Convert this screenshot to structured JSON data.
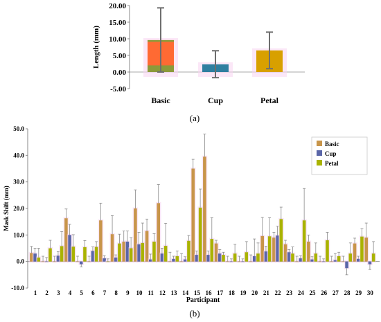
{
  "chart_data": [
    {
      "type": "bar",
      "panel_label": "(a)",
      "ylabel": "Length (mm)",
      "ylim": [
        -5,
        20
      ],
      "yticks": [
        "-5.00",
        "0.00",
        "5.00",
        "10.00",
        "15.00",
        "20.00"
      ],
      "categories": [
        "Basic",
        "Cup",
        "Petal"
      ],
      "values": [
        9.6,
        2.3,
        6.5
      ],
      "error_low": [
        0.0,
        -1.7,
        1.0
      ],
      "error_high": [
        19.3,
        6.4,
        12.0
      ],
      "colors": [
        "#ff6a33",
        "#2f7fa0",
        "#d8a000"
      ],
      "base_bands": [
        2.0,
        0,
        0
      ],
      "band_color": "#8c9a3a"
    },
    {
      "type": "bar",
      "panel_label": "(b)",
      "ylabel": "Mask Shift (mm)",
      "xlabel": "Participant",
      "ylim": [
        -10,
        50
      ],
      "yticks": [
        "-10.0",
        "0.0",
        "10.0",
        "20.0",
        "30.0",
        "40.0",
        "50.0"
      ],
      "categories": [
        "1",
        "2",
        "3",
        "4",
        "5",
        "6",
        "7",
        "8",
        "9",
        "10",
        "11",
        "12",
        "13",
        "14",
        "15",
        "16",
        "17",
        "18",
        "19",
        "20",
        "21",
        "22",
        "23",
        "24",
        "25",
        "26",
        "27",
        "28",
        "29",
        "30"
      ],
      "legend_position": "top-right",
      "series": [
        {
          "name": "Basic",
          "color": "#c8954a",
          "values": [
            3.2,
            0.0,
            0.0,
            16.3,
            0.0,
            0.0,
            15.5,
            10.3,
            7.5,
            20.0,
            11.5,
            22.0,
            0.0,
            0.0,
            35.0,
            39.5,
            6.8,
            0.0,
            0.0,
            0.0,
            9.6,
            9.0,
            6.5,
            0.0,
            7.5,
            0.0,
            0.0,
            0.0,
            6.8,
            9.0
          ],
          "errors": [
            2.5,
            2.0,
            2.0,
            3.5,
            2.0,
            2.0,
            6.5,
            7.0,
            4.0,
            7.0,
            4.5,
            7.0,
            3.5,
            3.0,
            3.5,
            8.5,
            1.2,
            2.0,
            2.0,
            2.5,
            7.0,
            2.0,
            1.5,
            2.0,
            2.5,
            2.0,
            2.0,
            2.0,
            2.0,
            5.5
          ]
        },
        {
          "name": "Cup",
          "color": "#5a66a8",
          "values": [
            3.0,
            0.0,
            2.2,
            10.0,
            -1.0,
            4.0,
            1.2,
            1.5,
            7.5,
            6.5,
            0.8,
            3.0,
            1.0,
            0.8,
            2.5,
            2.5,
            3.0,
            0.0,
            0.0,
            2.0,
            3.8,
            9.8,
            3.5,
            1.2,
            0.8,
            0.0,
            0.5,
            -2.5,
            1.0,
            -1.0
          ],
          "errors": [
            2.0,
            1.5,
            1.5,
            4.0,
            1.0,
            1.5,
            1.0,
            1.0,
            4.0,
            4.5,
            2.0,
            2.0,
            1.0,
            1.0,
            1.5,
            1.5,
            1.5,
            1.0,
            1.0,
            6.5,
            2.0,
            3.5,
            1.0,
            1.0,
            1.0,
            1.0,
            2.5,
            2.5,
            1.0,
            2.0
          ]
        },
        {
          "name": "Petal",
          "color": "#a9b300",
          "values": [
            1.5,
            5.0,
            5.8,
            5.6,
            5.4,
            5.5,
            0.0,
            6.8,
            5.0,
            7.0,
            7.5,
            5.9,
            2.0,
            7.8,
            20.3,
            8.5,
            2.5,
            3.0,
            3.5,
            3.0,
            9.5,
            16.0,
            3.0,
            15.5,
            3.0,
            8.0,
            2.0,
            3.0,
            9.4,
            3.0
          ],
          "errors": [
            3.5,
            3.0,
            5.5,
            4.5,
            2.5,
            2.0,
            1.0,
            3.5,
            4.0,
            7.5,
            3.0,
            8.5,
            2.0,
            2.0,
            7.0,
            8.0,
            1.0,
            3.5,
            4.0,
            4.0,
            7.0,
            4.5,
            2.5,
            12.0,
            4.0,
            3.0,
            1.5,
            4.0,
            3.0,
            4.5
          ]
        }
      ]
    }
  ]
}
